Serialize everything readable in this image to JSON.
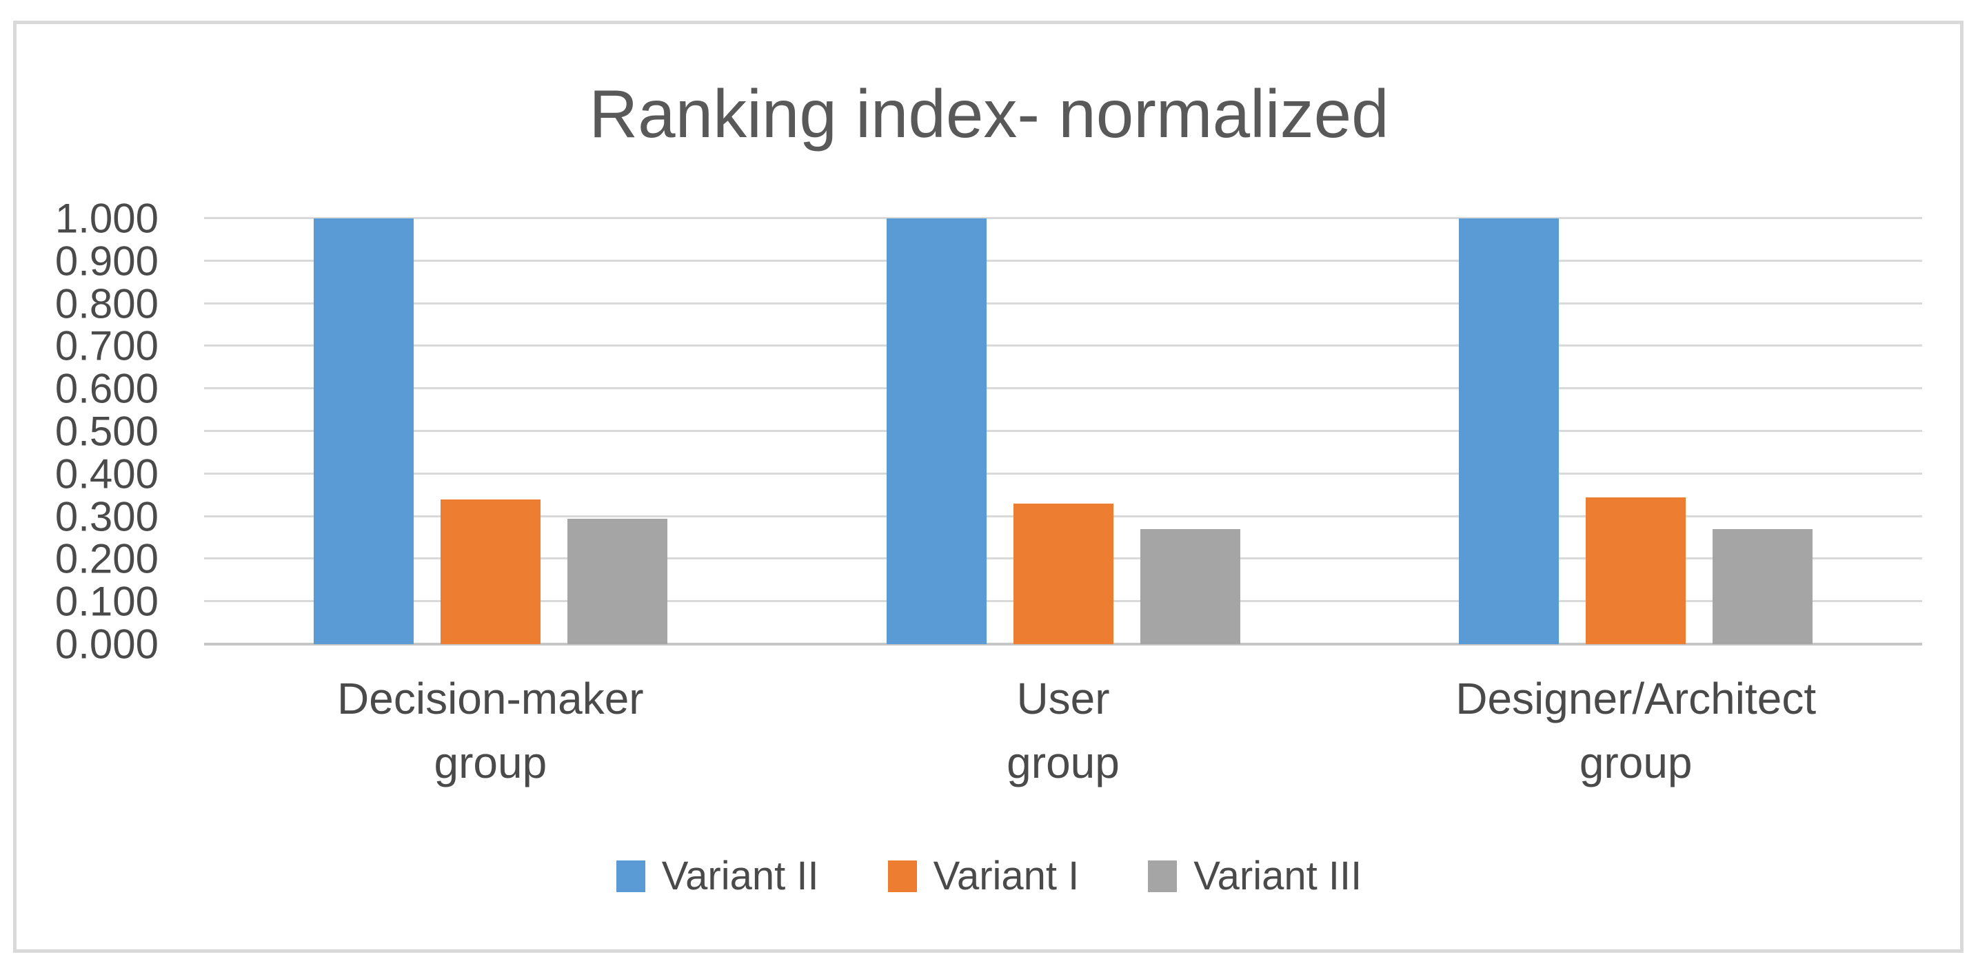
{
  "chart_data": {
    "type": "bar",
    "title": "Ranking index- normalized",
    "categories": [
      "Decision-maker group",
      "User group",
      "Designer/Architect group"
    ],
    "category_lines": [
      [
        "Decision-maker",
        "group"
      ],
      [
        "User",
        "group"
      ],
      [
        "Designer/Architect",
        "group"
      ]
    ],
    "series": [
      {
        "name": "Variant II",
        "color": "#5B9BD5",
        "values": [
          1.0,
          1.0,
          1.0
        ]
      },
      {
        "name": "Variant I",
        "color": "#ED7D31",
        "values": [
          0.34,
          0.33,
          0.345
        ]
      },
      {
        "name": "Variant III",
        "color": "#A5A5A5",
        "values": [
          0.295,
          0.27,
          0.27
        ]
      }
    ],
    "ylim": [
      0,
      1.0
    ],
    "yticks": [
      "1.000",
      "0.900",
      "0.800",
      "0.700",
      "0.600",
      "0.500",
      "0.400",
      "0.300",
      "0.200",
      "0.100",
      "0.000"
    ],
    "grid": "horizontal",
    "legend_position": "bottom",
    "xlabel": "",
    "ylabel": ""
  },
  "style": {
    "gridline_color": "#D9D9D9",
    "axis_line_color": "#C6C6C6",
    "frame_border_color": "#D9D9D9",
    "title_color": "#595959",
    "label_color": "#4A4A4A",
    "background": "#FFFFFF"
  }
}
